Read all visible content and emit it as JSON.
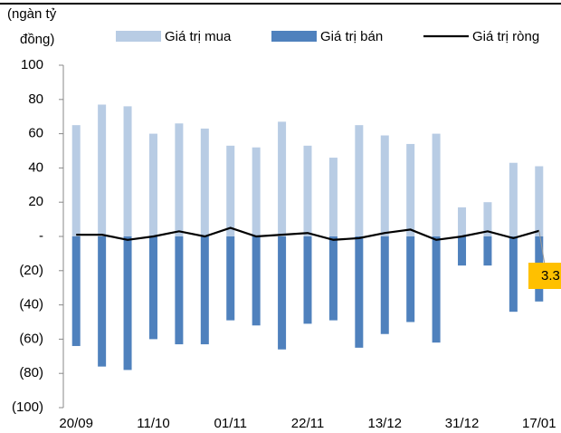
{
  "chart_data": {
    "type": "bar-line",
    "y_label": [
      "(ngàn tỷ",
      "đồng)"
    ],
    "categories": [
      "20/09",
      null,
      null,
      "11/10",
      null,
      null,
      "01/11",
      null,
      null,
      "22/11",
      null,
      null,
      "13/12",
      null,
      null,
      "31/12",
      null,
      null,
      "17/01"
    ],
    "series": [
      {
        "name": "Giá trị mua",
        "color": "#b8cce4",
        "kind": "bar",
        "values": [
          65,
          77,
          76,
          60,
          66,
          63,
          53,
          52,
          67,
          53,
          46,
          65,
          59,
          54,
          60,
          17,
          20,
          43,
          41
        ]
      },
      {
        "name": "Giá trị bán",
        "color": "#4f81bd",
        "kind": "bar",
        "values": [
          -64,
          -76,
          -78,
          -60,
          -63,
          -63,
          -49,
          -52,
          -66,
          -51,
          -49,
          -65,
          -57,
          -50,
          -62,
          -17,
          -17,
          -44,
          -38
        ]
      },
      {
        "name": "Giá trị ròng",
        "color": "#000000",
        "kind": "line",
        "values": [
          1,
          1,
          -2,
          0,
          3,
          0,
          5,
          0,
          1,
          2,
          -2,
          -1,
          2,
          4,
          -2,
          0,
          3,
          -1,
          3.3
        ]
      }
    ],
    "ylim": [
      -100,
      100
    ],
    "yticks": [
      {
        "value": -100,
        "label": "(100)"
      },
      {
        "value": -80,
        "label": "(80)"
      },
      {
        "value": -60,
        "label": "(60)"
      },
      {
        "value": -40,
        "label": "(40)"
      },
      {
        "value": -20,
        "label": "(20)"
      },
      {
        "value": 0,
        "label": "-"
      },
      20,
      40,
      60,
      80,
      100
    ],
    "annotation_color": "#ffc000"
  }
}
